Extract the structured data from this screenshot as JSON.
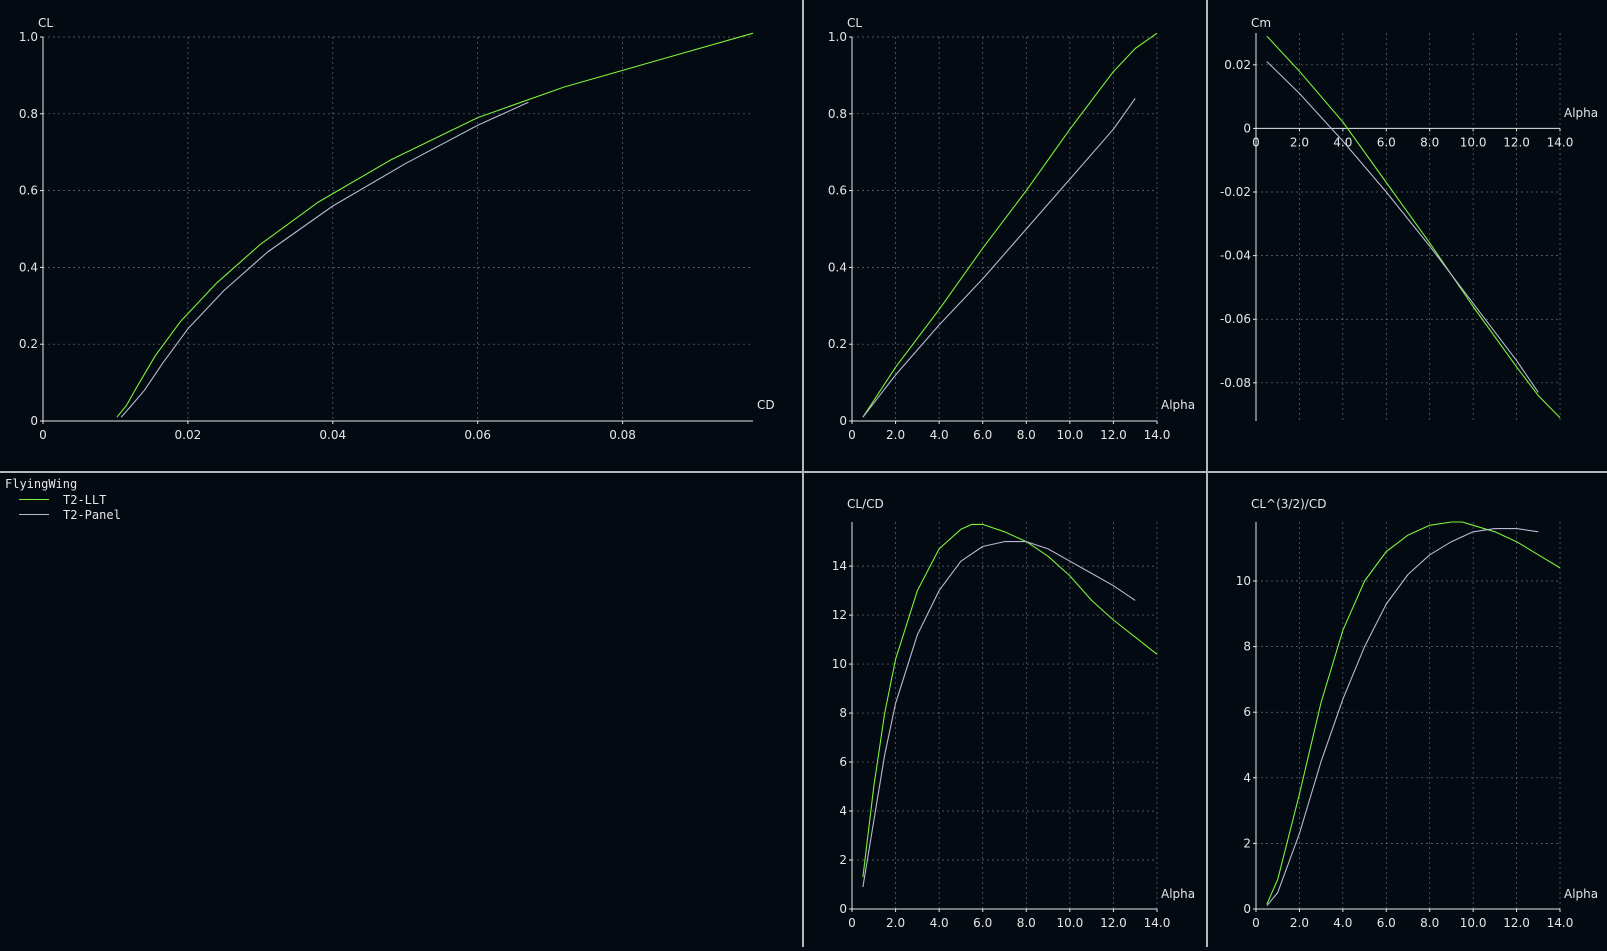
{
  "legend": {
    "title": "FlyingWing",
    "items": [
      {
        "label": "T2-LLT",
        "color": "#7cf23a"
      },
      {
        "label": "T2-Panel",
        "color": "#b9b9d4"
      }
    ]
  },
  "chart_data": [
    {
      "type": "line",
      "xlabel": "CD",
      "ylabel": "CL",
      "xlim": [
        0,
        0.098
      ],
      "ylim": [
        0,
        1.0
      ],
      "x_ticks": [
        0,
        0.02,
        0.04,
        0.06,
        0.08
      ],
      "x_tick_labels": [
        "0",
        "0.02",
        "0.04",
        "0.06",
        "0.08"
      ],
      "y_ticks": [
        0,
        0.2,
        0.4,
        0.6,
        0.8,
        1.0
      ],
      "y_tick_labels": [
        "0",
        "0.2",
        "0.4",
        "0.6",
        "0.8",
        "1.0"
      ],
      "grid": true,
      "series": [
        {
          "name": "T2-LLT",
          "x": [
            0.0102,
            0.0115,
            0.013,
            0.0155,
            0.019,
            0.024,
            0.03,
            0.038,
            0.048,
            0.06,
            0.072,
            0.085,
            0.098
          ],
          "y": [
            0.01,
            0.04,
            0.09,
            0.17,
            0.26,
            0.36,
            0.46,
            0.57,
            0.68,
            0.79,
            0.87,
            0.94,
            1.01
          ]
        },
        {
          "name": "T2-Panel",
          "x": [
            0.0108,
            0.0122,
            0.014,
            0.0165,
            0.02,
            0.025,
            0.031,
            0.04,
            0.05,
            0.06,
            0.067
          ],
          "y": [
            0.01,
            0.04,
            0.08,
            0.15,
            0.24,
            0.34,
            0.44,
            0.56,
            0.67,
            0.77,
            0.83
          ]
        }
      ]
    },
    {
      "type": "line",
      "xlabel": "Alpha",
      "ylabel": "CL",
      "xlim": [
        0,
        14.0
      ],
      "ylim": [
        0,
        1.0
      ],
      "x_ticks": [
        0,
        2,
        4,
        6,
        8,
        10,
        12,
        14
      ],
      "x_tick_labels": [
        "0",
        "2.0",
        "4.0",
        "6.0",
        "8.0",
        "10.0",
        "12.0",
        "14.0"
      ],
      "y_ticks": [
        0,
        0.2,
        0.4,
        0.6,
        0.8,
        1.0
      ],
      "y_tick_labels": [
        "0",
        "0.2",
        "0.4",
        "0.6",
        "0.8",
        "1.0"
      ],
      "grid": true,
      "series": [
        {
          "name": "T2-LLT",
          "x": [
            0.5,
            2,
            4,
            6,
            8,
            10,
            12,
            13,
            14
          ],
          "y": [
            0.01,
            0.14,
            0.29,
            0.45,
            0.6,
            0.76,
            0.91,
            0.97,
            1.01
          ]
        },
        {
          "name": "T2-Panel",
          "x": [
            0.5,
            2,
            4,
            6,
            8,
            10,
            12,
            13
          ],
          "y": [
            0.01,
            0.12,
            0.25,
            0.37,
            0.5,
            0.63,
            0.76,
            0.84
          ]
        }
      ]
    },
    {
      "type": "line",
      "xlabel": "Alpha",
      "ylabel": "Cm",
      "xlim": [
        0,
        14.0
      ],
      "ylim": [
        -0.092,
        0.03
      ],
      "x_ticks": [
        0,
        2,
        4,
        6,
        8,
        10,
        12,
        14
      ],
      "x_tick_labels": [
        "0",
        "2.0",
        "4.0",
        "6.0",
        "8.0",
        "10.0",
        "12.0",
        "14.0"
      ],
      "y_ticks": [
        -0.08,
        -0.06,
        -0.04,
        -0.02,
        0,
        0.02
      ],
      "y_tick_labels": [
        "-0.08",
        "-0.06",
        "-0.04",
        "-0.02",
        "0",
        "0.02"
      ],
      "grid": true,
      "series": [
        {
          "name": "T2-LLT",
          "x": [
            0.5,
            2,
            4,
            6,
            8,
            10,
            12,
            13,
            14
          ],
          "y": [
            0.029,
            0.018,
            0.002,
            -0.017,
            -0.036,
            -0.056,
            -0.075,
            -0.084,
            -0.091
          ]
        },
        {
          "name": "T2-Panel",
          "x": [
            0.5,
            2,
            4,
            6,
            8,
            10,
            12,
            13
          ],
          "y": [
            0.021,
            0.011,
            -0.004,
            -0.02,
            -0.037,
            -0.055,
            -0.073,
            -0.083
          ]
        }
      ]
    },
    {
      "type": "line",
      "xlabel": "Alpha",
      "ylabel": "CL/CD",
      "xlim": [
        0,
        14.0
      ],
      "ylim": [
        0,
        15.8
      ],
      "x_ticks": [
        0,
        2,
        4,
        6,
        8,
        10,
        12,
        14
      ],
      "x_tick_labels": [
        "0",
        "2.0",
        "4.0",
        "6.0",
        "8.0",
        "10.0",
        "12.0",
        "14.0"
      ],
      "y_ticks": [
        0,
        2,
        4,
        6,
        8,
        10,
        12,
        14
      ],
      "y_tick_labels": [
        "0",
        "2",
        "4",
        "6",
        "8",
        "10",
        "12",
        "14"
      ],
      "grid": true,
      "series": [
        {
          "name": "T2-LLT",
          "x": [
            0.5,
            1,
            1.5,
            2,
            3,
            4,
            5,
            5.5,
            6,
            7,
            8,
            9,
            10,
            11,
            12,
            13,
            14
          ],
          "y": [
            1.3,
            5.0,
            8.0,
            10.2,
            13.0,
            14.7,
            15.5,
            15.7,
            15.7,
            15.4,
            15.0,
            14.4,
            13.6,
            12.6,
            11.8,
            11.1,
            10.4
          ]
        },
        {
          "name": "T2-Panel",
          "x": [
            0.5,
            1,
            1.5,
            2,
            3,
            4,
            5,
            6,
            7,
            8,
            9,
            10,
            11,
            12,
            13
          ],
          "y": [
            0.9,
            3.6,
            6.3,
            8.4,
            11.2,
            13.0,
            14.2,
            14.8,
            15.0,
            15.0,
            14.7,
            14.2,
            13.7,
            13.2,
            12.6
          ]
        }
      ]
    },
    {
      "type": "line",
      "xlabel": "Alpha",
      "ylabel": "CL^(3/2)/CD",
      "xlim": [
        0,
        14.0
      ],
      "ylim": [
        0,
        11.8
      ],
      "x_ticks": [
        0,
        2,
        4,
        6,
        8,
        10,
        12,
        14
      ],
      "x_tick_labels": [
        "0",
        "2.0",
        "4.0",
        "6.0",
        "8.0",
        "10.0",
        "12.0",
        "14.0"
      ],
      "y_ticks": [
        0,
        2,
        4,
        6,
        8,
        10
      ],
      "y_tick_labels": [
        "0",
        "2",
        "4",
        "6",
        "8",
        "10"
      ],
      "grid": true,
      "series": [
        {
          "name": "T2-LLT",
          "x": [
            0.5,
            1,
            2,
            3,
            4,
            5,
            6,
            7,
            8,
            9,
            9.5,
            10,
            11,
            12,
            13,
            14
          ],
          "y": [
            0.15,
            0.9,
            3.5,
            6.3,
            8.5,
            10.0,
            10.9,
            11.4,
            11.7,
            11.8,
            11.8,
            11.7,
            11.5,
            11.2,
            10.8,
            10.4
          ]
        },
        {
          "name": "T2-Panel",
          "x": [
            0.5,
            1,
            2,
            3,
            4,
            5,
            6,
            7,
            8,
            9,
            10,
            11,
            12,
            13
          ],
          "y": [
            0.1,
            0.5,
            2.3,
            4.5,
            6.4,
            8.0,
            9.3,
            10.2,
            10.8,
            11.2,
            11.5,
            11.6,
            11.6,
            11.5
          ]
        }
      ]
    }
  ]
}
